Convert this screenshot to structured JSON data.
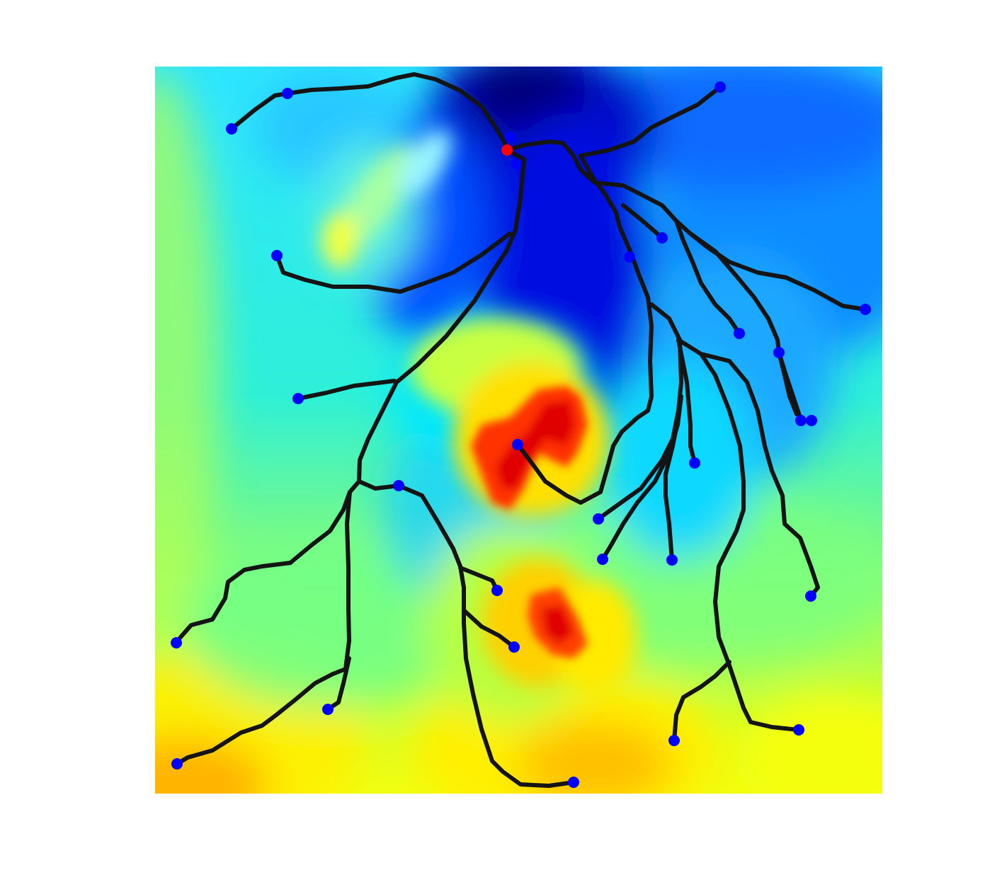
{
  "map": {
    "type": "drainage-network-over-elevation",
    "colormap": "jet",
    "colors": {
      "stream": "#141414",
      "endpoint": "#0000ff",
      "outlet": "#ff0000",
      "background": "#ffffff"
    },
    "endpoint_count": 33,
    "outlet_count": 1
  }
}
